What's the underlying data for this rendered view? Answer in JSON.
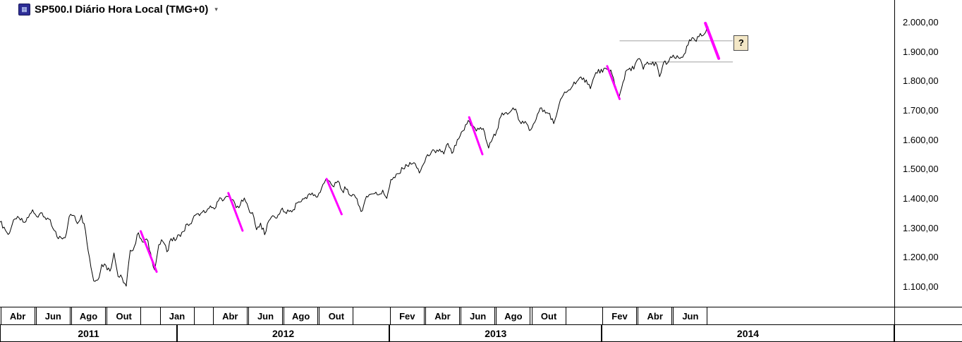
{
  "header": {
    "title": "SP500.I Diário Hora Local (TMG+0)"
  },
  "chart_data": {
    "type": "line",
    "title": "SP500.I Diário Hora Local (TMG+0)",
    "xlabel": "",
    "ylabel": "",
    "grid": false,
    "legend": "none",
    "x_unit": "months since 2011-03-01",
    "x_step_months": 0.23,
    "xlim_months": [
      0,
      50.5
    ],
    "ylim": [
      1033,
      2077
    ],
    "series": [
      {
        "name": "SP500.I",
        "values": [
          1321,
          1304,
          1279,
          1313,
          1332,
          1328,
          1320,
          1337,
          1363,
          1340,
          1353,
          1338,
          1331,
          1300,
          1271,
          1268,
          1268,
          1340,
          1344,
          1316,
          1345,
          1292,
          1199,
          1121,
          1124,
          1177,
          1174,
          1154,
          1216,
          1136,
          1131,
          1103,
          1225,
          1238,
          1285,
          1253,
          1264,
          1216,
          1158,
          1244,
          1255,
          1220,
          1265,
          1258,
          1278,
          1289,
          1315,
          1316,
          1345,
          1343,
          1361,
          1366,
          1370,
          1371,
          1404,
          1397,
          1408,
          1398,
          1370,
          1379,
          1403,
          1369,
          1354,
          1295,
          1318,
          1278,
          1325,
          1343,
          1335,
          1362,
          1355,
          1357,
          1363,
          1386,
          1391,
          1405,
          1418,
          1411,
          1407,
          1438,
          1466,
          1460,
          1441,
          1461,
          1429,
          1433,
          1412,
          1414,
          1380,
          1360,
          1409,
          1416,
          1418,
          1414,
          1430,
          1402,
          1466,
          1472,
          1486,
          1503,
          1513,
          1518,
          1520,
          1488,
          1518,
          1551,
          1561,
          1557,
          1569,
          1553,
          1589,
          1555,
          1582,
          1614,
          1634,
          1667,
          1650,
          1631,
          1643,
          1627,
          1573,
          1606,
          1632,
          1680,
          1692,
          1692,
          1710,
          1691,
          1656,
          1664,
          1633,
          1655,
          1688,
          1710,
          1692,
          1691,
          1656,
          1703,
          1745,
          1762,
          1771,
          1798,
          1805,
          1806,
          1805,
          1775,
          1818,
          1841,
          1831,
          1842,
          1839,
          1790,
          1742,
          1797,
          1839,
          1836,
          1859,
          1878,
          1841,
          1866,
          1858,
          1865,
          1816,
          1865,
          1863,
          1881,
          1878,
          1878,
          1892,
          1924,
          1949,
          1936,
          1963,
          1961,
          1985
        ]
      }
    ],
    "y_ticks": [
      {
        "label": "2.000,00",
        "value": 2000
      },
      {
        "label": "1.900,00",
        "value": 1900
      },
      {
        "label": "1.800,00",
        "value": 1800
      },
      {
        "label": "1.700,00",
        "value": 1700
      },
      {
        "label": "1.600,00",
        "value": 1600
      },
      {
        "label": "1.500,00",
        "value": 1500
      },
      {
        "label": "1.400,00",
        "value": 1400
      },
      {
        "label": "1.300,00",
        "value": 1300
      },
      {
        "label": "1.200,00",
        "value": 1200
      },
      {
        "label": "1.100,00",
        "value": 1100
      }
    ],
    "x_month_ticks": [
      {
        "label": "Abr",
        "t": 1
      },
      {
        "label": "Jun",
        "t": 3
      },
      {
        "label": "Ago",
        "t": 5
      },
      {
        "label": "Out",
        "t": 7
      },
      {
        "label": "Jan",
        "t": 10
      },
      {
        "label": "Abr",
        "t": 13
      },
      {
        "label": "Jun",
        "t": 15
      },
      {
        "label": "Ago",
        "t": 17
      },
      {
        "label": "Out",
        "t": 19
      },
      {
        "label": "Fev",
        "t": 23
      },
      {
        "label": "Abr",
        "t": 25
      },
      {
        "label": "Jun",
        "t": 27
      },
      {
        "label": "Ago",
        "t": 29
      },
      {
        "label": "Out",
        "t": 31
      },
      {
        "label": "Fev",
        "t": 35
      },
      {
        "label": "Abr",
        "t": 37
      },
      {
        "label": "Jun",
        "t": 39
      }
    ],
    "x_year_ticks": [
      {
        "label": "2011",
        "t_start": 0,
        "t_end": 10
      },
      {
        "label": "2012",
        "t_start": 10,
        "t_end": 22
      },
      {
        "label": "2013",
        "t_start": 22,
        "t_end": 34
      },
      {
        "label": "2014",
        "t_start": 34,
        "t_end": 50.5
      }
    ],
    "annotations": {
      "trendlines": [
        {
          "t1": 7.95,
          "v1": 1290,
          "t2": 8.85,
          "v2": 1152,
          "width": 3
        },
        {
          "t1": 12.9,
          "v1": 1420,
          "t2": 13.7,
          "v2": 1292,
          "width": 3
        },
        {
          "t1": 18.45,
          "v1": 1468,
          "t2": 19.3,
          "v2": 1348,
          "width": 3
        },
        {
          "t1": 26.5,
          "v1": 1678,
          "t2": 27.25,
          "v2": 1552,
          "width": 3
        },
        {
          "t1": 34.3,
          "v1": 1852,
          "t2": 35.0,
          "v2": 1740,
          "width": 3
        },
        {
          "t1": 39.85,
          "v1": 1998,
          "t2": 40.6,
          "v2": 1878,
          "width": 4
        }
      ],
      "hlines": [
        {
          "value": 1938,
          "t1": 35.0,
          "t2": 41.4
        },
        {
          "value": 1866,
          "t1": 36.7,
          "t2": 41.4
        }
      ],
      "question_label": {
        "text": "?",
        "t": 41.85,
        "value": 1934
      }
    },
    "colors": {
      "price": "#000000",
      "trendline": "#ff00ff",
      "hline": "#a0a0a0",
      "label_box_bg": "#f3e7c6"
    }
  }
}
